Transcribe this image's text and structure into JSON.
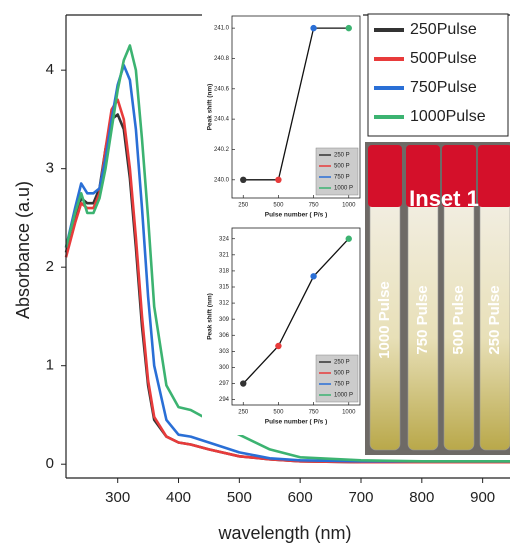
{
  "chart_data": [
    {
      "type": "line",
      "xlabel": "wavelength (nm)",
      "ylabel": "Absorbance (a.u)",
      "x": [
        215,
        230,
        240,
        250,
        260,
        270,
        280,
        290,
        300,
        310,
        320,
        330,
        340,
        350,
        360,
        380,
        400,
        420,
        450,
        500,
        550,
        600,
        700,
        800,
        950
      ],
      "series": [
        {
          "name": "250Pulse",
          "color": "#333333",
          "values": [
            2.15,
            2.5,
            2.7,
            2.65,
            2.65,
            2.8,
            3.2,
            3.5,
            3.55,
            3.4,
            2.9,
            2.2,
            1.4,
            0.8,
            0.45,
            0.28,
            0.22,
            0.2,
            0.15,
            0.08,
            0.05,
            0.03,
            0.02,
            0.02,
            0.02
          ]
        },
        {
          "name": "500Pulse",
          "color": "#e83b3b",
          "values": [
            2.1,
            2.45,
            2.65,
            2.6,
            2.6,
            2.75,
            3.2,
            3.6,
            3.7,
            3.5,
            3.0,
            2.3,
            1.5,
            0.85,
            0.48,
            0.28,
            0.22,
            0.2,
            0.15,
            0.08,
            0.05,
            0.03,
            0.02,
            0.02,
            0.02
          ]
        },
        {
          "name": "750Pulse",
          "color": "#2a6fd6",
          "values": [
            2.2,
            2.6,
            2.85,
            2.75,
            2.75,
            2.8,
            3.1,
            3.5,
            3.85,
            4.05,
            3.9,
            3.4,
            2.6,
            1.7,
            1.0,
            0.45,
            0.3,
            0.28,
            0.22,
            0.12,
            0.06,
            0.04,
            0.03,
            0.03,
            0.03
          ]
        },
        {
          "name": "1000Pulse",
          "color": "#3cb371",
          "values": [
            2.2,
            2.55,
            2.75,
            2.55,
            2.55,
            2.7,
            3.0,
            3.4,
            3.8,
            4.1,
            4.25,
            4.0,
            3.3,
            2.5,
            1.6,
            0.8,
            0.58,
            0.55,
            0.45,
            0.3,
            0.15,
            0.07,
            0.04,
            0.03,
            0.03
          ]
        }
      ],
      "xlim": [
        215,
        945
      ],
      "ylim": [
        -0.14,
        4.56
      ],
      "xticks": [
        300,
        400,
        500,
        600,
        700,
        800,
        900
      ],
      "yticks": [
        0,
        1,
        2,
        3,
        4
      ]
    },
    {
      "type": "inset",
      "xlabel": "Pulse number ( P/s )",
      "ylabel": "Peak shift (nm)",
      "x": [
        250,
        500,
        750,
        1000
      ],
      "values": [
        240.0,
        240.0,
        241.0,
        241.0
      ],
      "point_colors": [
        "#333333",
        "#e83b3b",
        "#2a6fd6",
        "#3cb371"
      ],
      "legend": [
        "250 P",
        "500 P",
        "750 P",
        "1000 P"
      ],
      "xlim": [
        170,
        1080
      ],
      "ylim": [
        239.88,
        241.08
      ],
      "xticks": [
        250,
        500,
        750,
        1000
      ],
      "yticks": [
        {
          "value": 240,
          "label": "240.0"
        },
        240.2,
        240.4,
        240.6,
        240.8,
        {
          "value": 241,
          "label": "241.0"
        }
      ]
    },
    {
      "type": "inset",
      "xlabel": "Pulse number ( P/s )",
      "ylabel": "Peak shift (nm)",
      "x": [
        250,
        500,
        750,
        1000
      ],
      "values": [
        297,
        304,
        317,
        324
      ],
      "point_colors": [
        "#333333",
        "#e83b3b",
        "#2a6fd6",
        "#3cb371"
      ],
      "legend": [
        "250 P",
        "500 P",
        "750 P",
        "1000 P"
      ],
      "xlim": [
        170,
        1080
      ],
      "ylim": [
        293,
        326
      ],
      "xticks": [
        250,
        500,
        750,
        1000
      ],
      "yticks": [
        294,
        297,
        300,
        303,
        306,
        309,
        312,
        315,
        318,
        321,
        324
      ]
    }
  ],
  "inset_photo": {
    "label": "Inset 1",
    "tube_labels": [
      "1000 Pulse",
      "750 Pulse",
      "500 Pulse",
      "250 Pulse"
    ]
  }
}
